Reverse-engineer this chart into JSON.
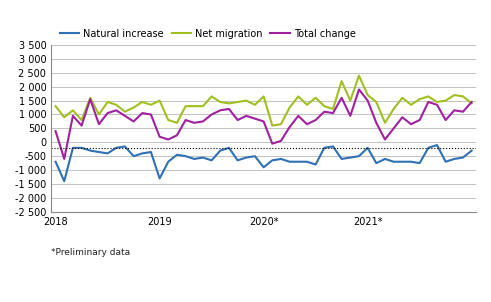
{
  "title": "",
  "footnote": "*Preliminary data",
  "legend": [
    "Natural increase",
    "Net migration",
    "Total change"
  ],
  "legend_colors": [
    "#3070b4",
    "#a0c020",
    "#a020a0"
  ],
  "ylim": [
    -2500,
    3500
  ],
  "yticks": [
    -2500,
    -2000,
    -1500,
    -1000,
    -500,
    0,
    500,
    1000,
    1500,
    2000,
    2500,
    3000,
    3500
  ],
  "ytick_labels": [
    "-2 500",
    "-2 000",
    "-1 500",
    "-1 000",
    "-500",
    "0",
    "500",
    "1 000",
    "1 500",
    "2 000",
    "2 500",
    "3 000",
    "3 500"
  ],
  "hline_y": -200,
  "natural_increase": [
    -700,
    -1400,
    -200,
    -200,
    -300,
    -350,
    -400,
    -200,
    -150,
    -500,
    -400,
    -350,
    -1300,
    -700,
    -450,
    -500,
    -600,
    -550,
    -650,
    -300,
    -200,
    -650,
    -550,
    -500,
    -900,
    -650,
    -600,
    -700,
    -700,
    -700,
    -800,
    -200,
    -150,
    -600,
    -550,
    -500,
    -200,
    -750,
    -600,
    -700,
    -700,
    -700,
    -750,
    -200,
    -100,
    -700,
    -600,
    -550,
    -300
  ],
  "net_migration": [
    1300,
    900,
    1150,
    800,
    1600,
    1000,
    1450,
    1350,
    1100,
    1250,
    1450,
    1350,
    1500,
    800,
    700,
    1300,
    1300,
    1300,
    1650,
    1450,
    1400,
    1450,
    1500,
    1350,
    1650,
    600,
    650,
    1250,
    1650,
    1350,
    1600,
    1300,
    1200,
    2200,
    1500,
    2400,
    1700,
    1450,
    700,
    1200,
    1600,
    1350,
    1550,
    1650,
    1450,
    1500,
    1700,
    1650,
    1400
  ],
  "total_change": [
    400,
    -600,
    950,
    600,
    1550,
    650,
    1050,
    1150,
    950,
    750,
    1050,
    1000,
    200,
    100,
    250,
    800,
    700,
    750,
    1000,
    1150,
    1200,
    800,
    950,
    850,
    750,
    -50,
    50,
    550,
    950,
    650,
    800,
    1100,
    1050,
    1600,
    950,
    1900,
    1500,
    700,
    100,
    500,
    900,
    650,
    800,
    1450,
    1350,
    800,
    1150,
    1100,
    1450
  ],
  "n_points": 49,
  "x_tick_positions": [
    0,
    12,
    24,
    36,
    48
  ],
  "x_tick_labels": [
    "2018",
    "2019",
    "2020*",
    "2021*",
    ""
  ],
  "line_width": 1.5,
  "background_color": "#ffffff",
  "grid_color": "#aaaaaa",
  "hline_color": "#000000"
}
